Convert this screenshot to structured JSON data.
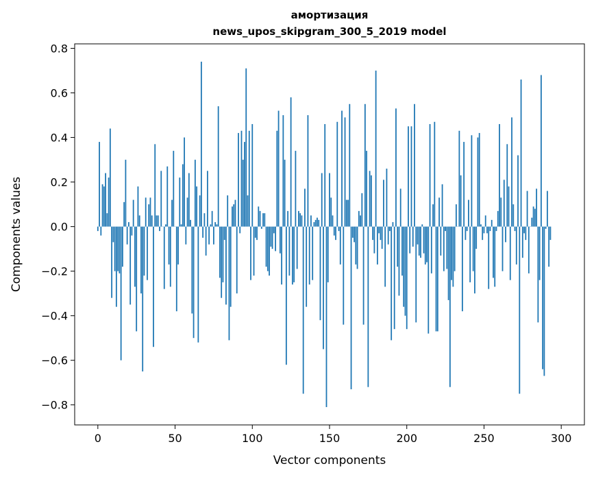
{
  "chart_data": {
    "type": "bar",
    "title": "амортизация",
    "subtitle": "news_upos_skipgram_300_5_2019 model",
    "xlabel": "Vector components",
    "ylabel": "Components values",
    "xlim": [
      -15,
      315
    ],
    "ylim": [
      -0.89,
      0.82
    ],
    "x_ticks": [
      0,
      50,
      100,
      150,
      200,
      250,
      300
    ],
    "x_tick_labels": [
      "0",
      "50",
      "100",
      "150",
      "200",
      "250",
      "300"
    ],
    "y_ticks": [
      -0.8,
      -0.6,
      -0.4,
      -0.2,
      0.0,
      0.2,
      0.4,
      0.6,
      0.8
    ],
    "y_tick_labels": [
      "−0.8",
      "−0.6",
      "−0.4",
      "−0.2",
      "0.0",
      "0.2",
      "0.4",
      "0.6",
      "0.8"
    ],
    "bar_color": "#1f77b4",
    "grid": false,
    "legend": "none",
    "values": [
      -0.02,
      0.38,
      -0.04,
      0.19,
      0.18,
      0.24,
      0.06,
      0.22,
      0.44,
      -0.32,
      -0.07,
      -0.2,
      -0.36,
      -0.2,
      -0.21,
      -0.6,
      -0.18,
      0.11,
      0.3,
      -0.08,
      0.02,
      -0.35,
      -0.04,
      0.12,
      -0.27,
      -0.47,
      0.18,
      0.05,
      -0.3,
      -0.65,
      -0.22,
      0.13,
      -0.24,
      0.1,
      0.13,
      0.05,
      -0.54,
      0.37,
      0.05,
      0.05,
      -0.02,
      0.25,
      0.0,
      -0.28,
      0.01,
      0.27,
      -0.17,
      -0.27,
      0.12,
      0.34,
      0.0,
      -0.38,
      -0.17,
      0.22,
      0.01,
      0.28,
      0.4,
      -0.08,
      0.13,
      0.24,
      0.03,
      -0.39,
      -0.5,
      0.3,
      0.18,
      -0.52,
      0.14,
      0.74,
      -0.05,
      0.06,
      -0.13,
      0.25,
      -0.08,
      0.01,
      0.07,
      -0.08,
      0.02,
      0.01,
      0.54,
      -0.23,
      -0.32,
      -0.25,
      -0.06,
      -0.35,
      0.14,
      -0.51,
      -0.36,
      0.09,
      0.1,
      0.12,
      -0.3,
      0.42,
      -0.03,
      0.43,
      0.3,
      0.38,
      0.71,
      0.14,
      0.43,
      -0.24,
      0.46,
      -0.22,
      -0.05,
      -0.06,
      0.09,
      0.07,
      -0.01,
      0.06,
      0.06,
      -0.18,
      -0.2,
      -0.22,
      -0.09,
      -0.1,
      -0.03,
      -0.11,
      0.43,
      0.52,
      -0.12,
      -0.26,
      0.5,
      0.3,
      -0.62,
      0.07,
      -0.22,
      0.58,
      -0.26,
      -0.25,
      0.34,
      -0.19,
      0.07,
      0.06,
      0.05,
      -0.75,
      0.17,
      -0.36,
      0.5,
      -0.26,
      0.05,
      -0.24,
      0.02,
      0.03,
      0.04,
      0.03,
      -0.42,
      0.24,
      -0.55,
      0.46,
      -0.81,
      -0.25,
      0.24,
      0.13,
      0.05,
      -0.04,
      -0.06,
      0.47,
      -0.02,
      -0.17,
      0.52,
      -0.44,
      0.49,
      0.12,
      0.12,
      0.55,
      -0.73,
      -0.05,
      -0.07,
      -0.17,
      -0.19,
      0.07,
      0.05,
      0.15,
      -0.44,
      0.55,
      0.34,
      -0.72,
      0.25,
      0.23,
      -0.06,
      -0.12,
      0.7,
      -0.17,
      -0.03,
      -0.06,
      -0.1,
      0.21,
      -0.27,
      0.26,
      -0.08,
      -0.02,
      -0.51,
      0.02,
      -0.46,
      0.53,
      -0.18,
      -0.31,
      0.17,
      -0.22,
      -0.36,
      -0.4,
      -0.46,
      0.45,
      -0.12,
      0.45,
      -0.09,
      0.55,
      -0.43,
      -0.08,
      -0.13,
      -0.14,
      0.01,
      -0.12,
      -0.17,
      -0.16,
      -0.48,
      0.46,
      -0.21,
      0.1,
      0.47,
      -0.47,
      -0.47,
      0.13,
      -0.13,
      0.19,
      -0.2,
      -0.02,
      -0.19,
      -0.33,
      -0.72,
      -0.24,
      -0.27,
      -0.2,
      0.1,
      0.0,
      0.43,
      0.23,
      -0.38,
      0.38,
      -0.06,
      -0.02,
      0.12,
      -0.25,
      0.41,
      -0.2,
      -0.3,
      -0.1,
      0.4,
      0.42,
      0.01,
      -0.06,
      -0.03,
      0.05,
      -0.03,
      -0.28,
      -0.02,
      0.03,
      -0.23,
      -0.27,
      -0.02,
      0.07,
      0.46,
      0.13,
      -0.2,
      0.21,
      -0.07,
      0.37,
      0.18,
      -0.24,
      0.49,
      0.1,
      -0.02,
      -0.17,
      0.32,
      -0.75,
      0.66,
      -0.14,
      -0.03,
      -0.06,
      0.16,
      -0.21,
      0.0,
      0.04,
      0.09,
      0.08,
      0.17,
      -0.43,
      -0.24,
      0.68,
      -0.64,
      -0.67,
      -0.01,
      0.16,
      -0.18,
      -0.06
    ]
  }
}
